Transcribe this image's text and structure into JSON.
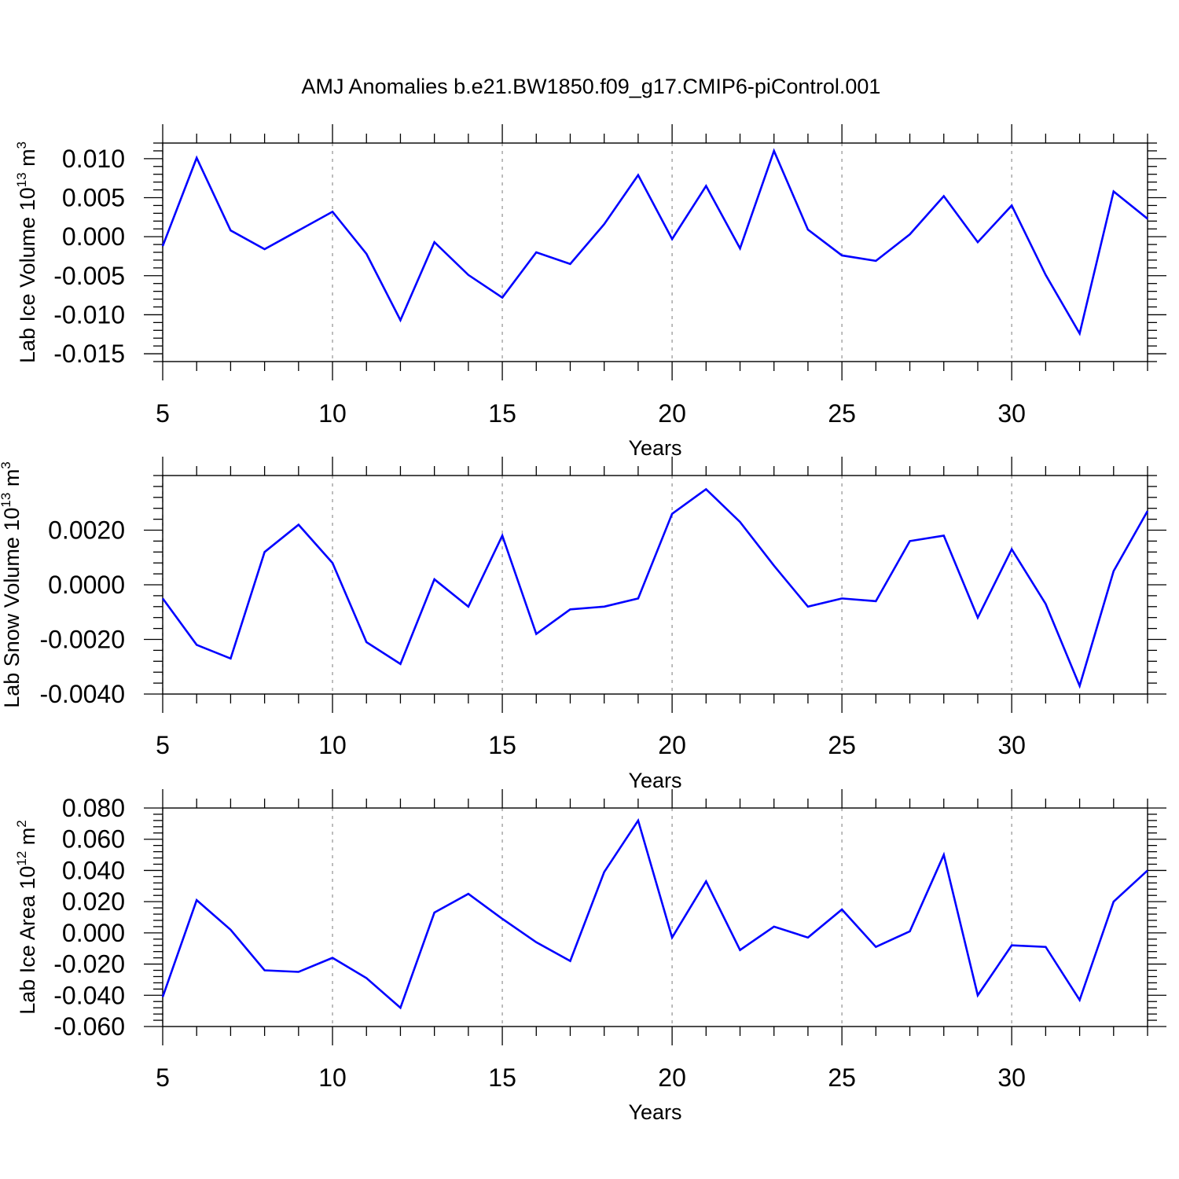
{
  "title": "AMJ Anomalies b.e21.BW1850.f09_g17.CMIP6-piControl.001",
  "colors": {
    "line": "#0000ff",
    "grid": "#a0a0a0",
    "axis": "#000000"
  },
  "chart_data": [
    {
      "type": "line",
      "xlabel": "Years",
      "ylabel": "Lab Ice Volume 10",
      "ylabel_exp": "13",
      "ylabel_unit": " m",
      "ylabel_unit_exp": "3",
      "xlim": [
        5,
        34
      ],
      "ylim": [
        -0.016,
        0.012
      ],
      "xticks": [
        5,
        10,
        15,
        20,
        25,
        30
      ],
      "xtick_labels": [
        "5",
        "10",
        "15",
        "20",
        "25",
        "30"
      ],
      "yticks": [
        -0.015,
        -0.01,
        -0.005,
        0.0,
        0.005,
        0.01
      ],
      "ytick_labels": [
        "-0.015",
        "-0.010",
        "-0.005",
        "0.000",
        "0.005",
        "0.010"
      ],
      "grid": "vertical dashed at major x ticks",
      "x": [
        5,
        6,
        7,
        8,
        9,
        10,
        11,
        12,
        13,
        14,
        15,
        16,
        17,
        18,
        19,
        20,
        21,
        22,
        23,
        24,
        25,
        26,
        27,
        28,
        29,
        30,
        31,
        32,
        33,
        34
      ],
      "series": [
        {
          "values": [
            -0.0012,
            0.0101,
            0.0008,
            -0.0016,
            0.0008,
            0.0032,
            -0.0022,
            -0.0107,
            -0.0007,
            -0.0049,
            -0.0078,
            -0.002,
            -0.0035,
            0.0016,
            0.0079,
            -0.0003,
            0.0065,
            -0.0015,
            0.011,
            0.0009,
            -0.0024,
            -0.0031,
            0.0003,
            0.0052,
            -0.0007,
            0.004,
            -0.0049,
            -0.0124,
            0.0058,
            0.0023
          ]
        }
      ]
    },
    {
      "type": "line",
      "xlabel": "Years",
      "ylabel": "Lab Snow Volume 10",
      "ylabel_exp": "13",
      "ylabel_unit": " m",
      "ylabel_unit_exp": "3",
      "xlim": [
        5,
        34
      ],
      "ylim": [
        -0.004,
        0.004
      ],
      "xticks": [
        5,
        10,
        15,
        20,
        25,
        30
      ],
      "xtick_labels": [
        "5",
        "10",
        "15",
        "20",
        "25",
        "30"
      ],
      "yticks": [
        -0.004,
        -0.002,
        0.0,
        0.002
      ],
      "ytick_labels": [
        "-0.0040",
        "-0.0020",
        "0.0000",
        "0.0020"
      ],
      "grid": "vertical dashed at major x ticks",
      "x": [
        5,
        6,
        7,
        8,
        9,
        10,
        11,
        12,
        13,
        14,
        15,
        16,
        17,
        18,
        19,
        20,
        21,
        22,
        23,
        24,
        25,
        26,
        27,
        28,
        29,
        30,
        31,
        32,
        33,
        34
      ],
      "series": [
        {
          "values": [
            -0.0005,
            -0.0022,
            -0.0027,
            0.0012,
            0.0022,
            0.0008,
            -0.0021,
            -0.0029,
            0.0002,
            -0.0008,
            0.0018,
            -0.0018,
            -0.0009,
            -0.0008,
            -0.0005,
            0.0026,
            0.0035,
            0.0023,
            0.0007,
            -0.0008,
            -0.0005,
            -0.0006,
            0.0016,
            0.0018,
            -0.0012,
            0.0013,
            -0.0007,
            -0.0037,
            0.0005,
            0.0027
          ]
        }
      ]
    },
    {
      "type": "line",
      "xlabel": "Years",
      "ylabel": "Lab Ice Area 10",
      "ylabel_exp": "12",
      "ylabel_unit": " m",
      "ylabel_unit_exp": "2",
      "xlim": [
        5,
        34
      ],
      "ylim": [
        -0.06,
        0.08
      ],
      "xticks": [
        5,
        10,
        15,
        20,
        25,
        30
      ],
      "xtick_labels": [
        "5",
        "10",
        "15",
        "20",
        "25",
        "30"
      ],
      "yticks": [
        -0.06,
        -0.04,
        -0.02,
        0.0,
        0.02,
        0.04,
        0.06,
        0.08
      ],
      "ytick_labels": [
        "-0.060",
        "-0.040",
        "-0.020",
        "0.000",
        "0.020",
        "0.040",
        "0.060",
        "0.080"
      ],
      "grid": "vertical dashed at major x ticks",
      "x": [
        5,
        6,
        7,
        8,
        9,
        10,
        11,
        12,
        13,
        14,
        15,
        16,
        17,
        18,
        19,
        20,
        21,
        22,
        23,
        24,
        25,
        26,
        27,
        28,
        29,
        30,
        31,
        32,
        33,
        34
      ],
      "series": [
        {
          "values": [
            -0.041,
            0.021,
            0.002,
            -0.024,
            -0.025,
            -0.016,
            -0.029,
            -0.048,
            0.013,
            0.025,
            0.009,
            -0.006,
            -0.018,
            0.039,
            0.072,
            -0.003,
            0.033,
            -0.011,
            0.004,
            -0.003,
            0.015,
            -0.009,
            0.001,
            0.05,
            -0.04,
            -0.008,
            -0.009,
            -0.043,
            0.02,
            0.04
          ]
        }
      ]
    }
  ]
}
